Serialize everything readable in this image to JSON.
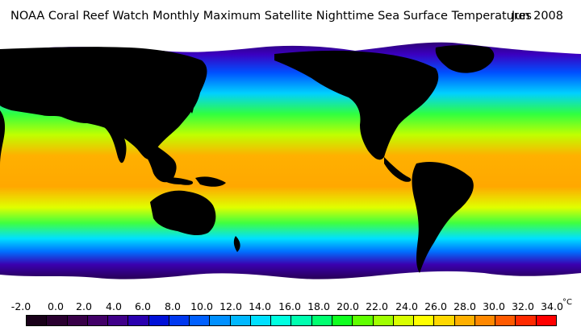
{
  "header": {
    "title": "NOAA Coral Reef Watch Monthly Maximum Satellite Nighttime Sea Surface Temperatures",
    "date": "Jun 2008"
  },
  "legend": {
    "unit": "°C",
    "ticks": [
      "-2.0",
      "0.0",
      "2.0",
      "4.0",
      "6.0",
      "8.0",
      "10.0",
      "12.0",
      "14.0",
      "16.0",
      "18.0",
      "20.0",
      "22.0",
      "24.0",
      "26.0",
      "28.0",
      "30.0",
      "32.0",
      "34.0"
    ],
    "colors": [
      "#190019",
      "#2a0030",
      "#380048",
      "#420068",
      "#40008a",
      "#2a00b0",
      "#0010d8",
      "#0038f0",
      "#0060ff",
      "#0090ff",
      "#00b8ff",
      "#00e0ff",
      "#00ffe0",
      "#00ffb0",
      "#00ff70",
      "#10ff20",
      "#60ff00",
      "#a0ff00",
      "#d8ff00",
      "#ffff00",
      "#ffd800",
      "#ffb000",
      "#ff8800",
      "#ff5a00",
      "#ff2a00",
      "#ff0000"
    ]
  }
}
